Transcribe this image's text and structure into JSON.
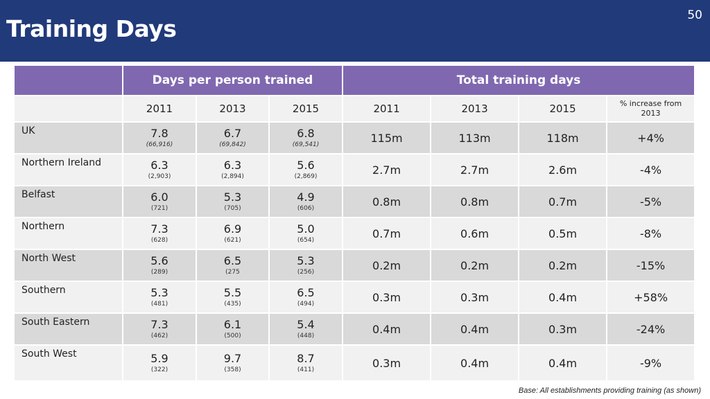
{
  "page": {
    "title": "Training Days",
    "number": "50"
  },
  "table": {
    "group_headers": {
      "days_per_person": "Days per person trained",
      "total_days": "Total training days"
    },
    "year_headers": {
      "dpp": [
        "2011",
        "2013",
        "2015"
      ],
      "total": [
        "2011",
        "2013",
        "2015"
      ],
      "pct": "% increase from 2013"
    },
    "rows": [
      {
        "region": "UK",
        "dpp": [
          {
            "v": "7.8",
            "n": "(66,916)"
          },
          {
            "v": "6.7",
            "n": "(69,842)"
          },
          {
            "v": "6.8",
            "n": "(69,541)"
          }
        ],
        "total": [
          "115m",
          "113m",
          "118m"
        ],
        "pct": "+4%"
      },
      {
        "region": "Northern Ireland",
        "dpp": [
          {
            "v": "6.3",
            "n": "(2,903)"
          },
          {
            "v": "6.3",
            "n": "(2,894)"
          },
          {
            "v": "5.6",
            "n": "(2,869)"
          }
        ],
        "total": [
          "2.7m",
          "2.7m",
          "2.6m"
        ],
        "pct": "-4%"
      },
      {
        "region": "Belfast",
        "dpp": [
          {
            "v": "6.0",
            "n": "(721)"
          },
          {
            "v": "5.3",
            "n": "(705)"
          },
          {
            "v": "4.9",
            "n": "(606)"
          }
        ],
        "total": [
          "0.8m",
          "0.8m",
          "0.7m"
        ],
        "pct": "-5%"
      },
      {
        "region": "Northern",
        "dpp": [
          {
            "v": "7.3",
            "n": "(628)"
          },
          {
            "v": "6.9",
            "n": "(621)"
          },
          {
            "v": "5.0",
            "n": "(654)"
          }
        ],
        "total": [
          "0.7m",
          "0.6m",
          "0.5m"
        ],
        "pct": "-8%"
      },
      {
        "region": "North West",
        "dpp": [
          {
            "v": "5.6",
            "n": "(289)"
          },
          {
            "v": "6.5",
            "n": "(275"
          },
          {
            "v": "5.3",
            "n": "(256)"
          }
        ],
        "total": [
          "0.2m",
          "0.2m",
          "0.2m"
        ],
        "pct": "-15%"
      },
      {
        "region": "Southern",
        "dpp": [
          {
            "v": "5.3",
            "n": "(481)"
          },
          {
            "v": "5.5",
            "n": "(435)"
          },
          {
            "v": "6.5",
            "n": "(494)"
          }
        ],
        "total": [
          "0.3m",
          "0.3m",
          "0.4m"
        ],
        "pct": "+58%"
      },
      {
        "region": "South Eastern",
        "dpp": [
          {
            "v": "7.3",
            "n": "(462)"
          },
          {
            "v": "6.1",
            "n": "(500)"
          },
          {
            "v": "5.4",
            "n": "(448)"
          }
        ],
        "total": [
          "0.4m",
          "0.4m",
          "0.3m"
        ],
        "pct": "-24%"
      },
      {
        "region": "South West",
        "dpp": [
          {
            "v": "5.9",
            "n": "(322)"
          },
          {
            "v": "9.7",
            "n": "(358)"
          },
          {
            "v": "8.7",
            "n": "(411)"
          }
        ],
        "total": [
          "0.3m",
          "0.4m",
          "0.4m"
        ],
        "pct": "-9%"
      }
    ]
  },
  "footnote": "Base: All establishments providing training (as shown)",
  "colors": {
    "header_bar": "#213a7a",
    "group_header": "#8068b0",
    "row_shade": "#d9d9d9",
    "row_light": "#f1f1f1"
  }
}
